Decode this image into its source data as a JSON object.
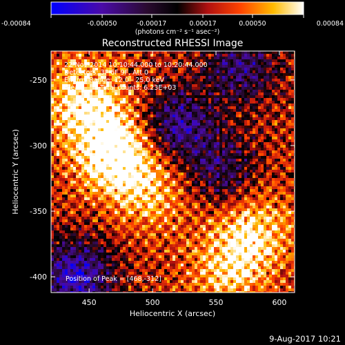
{
  "colorbar": {
    "tick_labels": [
      "-0.00084",
      "-0.00050",
      "-0.00017",
      "0.00017",
      "0.00050",
      "0.00084"
    ],
    "units": "(photons cm⁻² s⁻¹ asec⁻²)",
    "range": [
      -0.00084,
      0.00084
    ],
    "colormap": "blue-purple-black-red-orange-yellow-white"
  },
  "header": {
    "title": "Reconstructed RHESSI Image"
  },
  "overlay": {
    "line1": "22-Nov-2014 10:10:44.000 to 10:20:44.000",
    "line2": "Detectors: 3F 6F 9F, Att 0",
    "line3": "Energy Range: 12.0 - 25.0 keV",
    "line4_left": "Clean",
    "line4_right": "Total counts: 6.23E+03",
    "peak": "Position of Peak = [468,-312]"
  },
  "footer": {
    "timestamp": "9-Aug-2017 10:21"
  },
  "chart_data": {
    "type": "heatmap",
    "title": "Reconstructed RHESSI Image",
    "xlabel": "Heliocentric X (arcsec)",
    "ylabel": "Heliocentric Y (arcsec)",
    "xlim": [
      420,
      612
    ],
    "ylim": [
      -412,
      -228
    ],
    "xticks": [
      450,
      500,
      550,
      600
    ],
    "yticks": [
      -250,
      -300,
      -350,
      -400
    ],
    "xtick_labels": [
      "450",
      "500",
      "550",
      "600"
    ],
    "ytick_labels": [
      "-250",
      "-300",
      "-350",
      "-400"
    ],
    "value_range": [
      -0.00084,
      0.00084
    ],
    "peak_position": [
      468,
      -312
    ],
    "bright_regions": [
      {
        "x": 470,
        "y": -305,
        "intensity": 0.00084
      },
      {
        "x": 445,
        "y": -265,
        "intensity": 0.0006
      },
      {
        "x": 580,
        "y": -365,
        "intensity": 0.0005
      },
      {
        "x": 560,
        "y": -395,
        "intensity": 0.00045
      },
      {
        "x": 500,
        "y": -335,
        "intensity": 0.0004
      }
    ],
    "dark_regions": [
      {
        "x": 520,
        "y": -285,
        "intensity": -0.0005
      },
      {
        "x": 440,
        "y": -400,
        "intensity": -0.0006
      },
      {
        "x": 570,
        "y": -240,
        "intensity": -0.0004
      },
      {
        "x": 555,
        "y": -320,
        "intensity": -0.00035
      }
    ]
  }
}
